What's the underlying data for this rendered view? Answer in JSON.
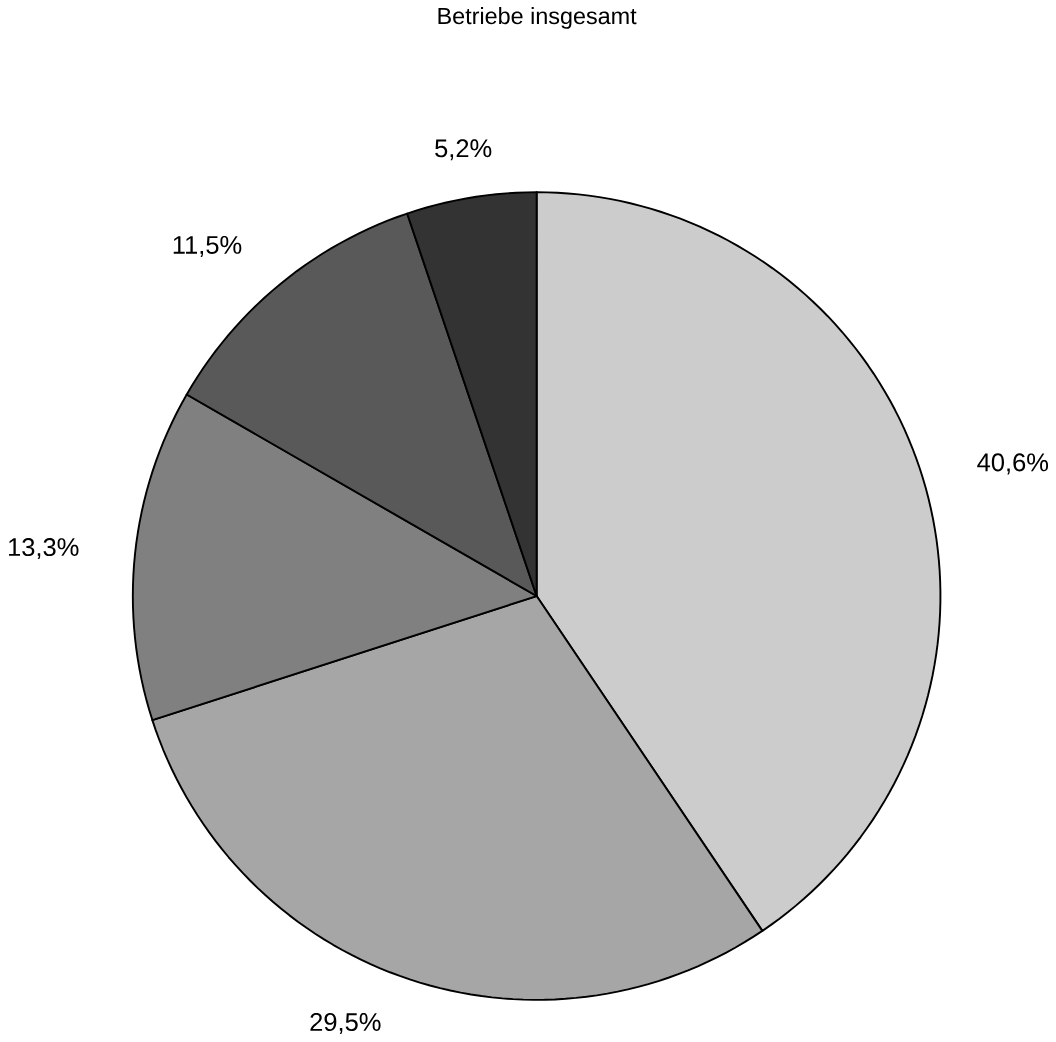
{
  "chart_data": {
    "type": "pie",
    "title": "Betriebe insgesamt",
    "categories": [
      null,
      null,
      null,
      null,
      null
    ],
    "values": [
      40.6,
      29.5,
      13.3,
      11.5,
      5.2
    ],
    "colors": [
      "#cccccc",
      "#a6a6a6",
      "#808080",
      "#595959",
      "#333333"
    ],
    "value_labels": [
      "40,6%",
      "29,5%",
      "13,3%",
      "11,5%",
      "5,2%"
    ]
  }
}
